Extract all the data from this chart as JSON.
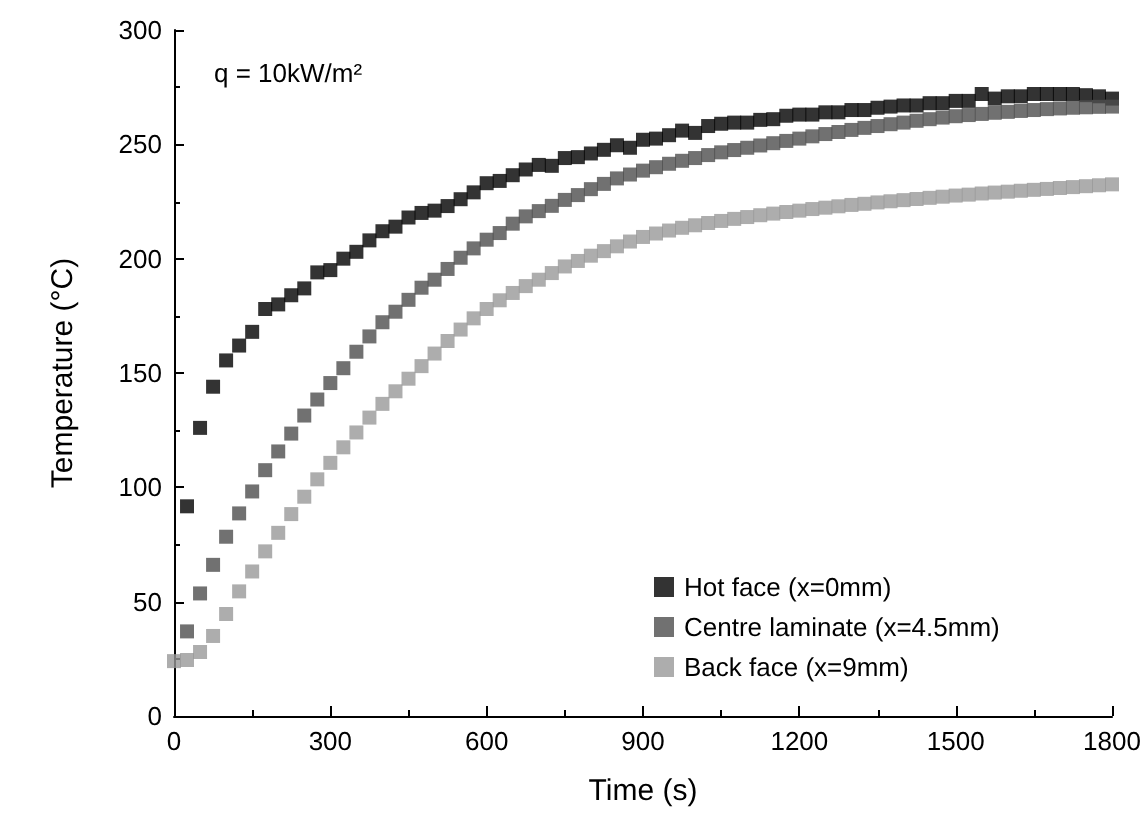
{
  "chart_data": {
    "type": "scatter",
    "xlabel": "Time (s)",
    "ylabel": "Temperature (°C)",
    "annotations": [
      "q = 10kW/m²"
    ],
    "xlim": [
      0,
      1800
    ],
    "xticks": [
      0,
      300,
      600,
      900,
      1200,
      1500,
      1800
    ],
    "ylim": [
      0,
      300
    ],
    "yticks": [
      0,
      50,
      100,
      150,
      200,
      250,
      300
    ],
    "grid": false,
    "legend": "bottom right",
    "marker": "square",
    "series": [
      {
        "name": "Hot face (x=0mm)",
        "color": "#000000",
        "x": [
          25,
          50,
          75,
          100,
          125,
          150,
          175,
          200,
          225,
          250,
          275,
          300,
          325,
          350,
          375,
          400,
          425,
          450,
          475,
          500,
          525,
          550,
          575,
          600,
          625,
          650,
          675,
          700,
          725,
          750,
          775,
          800,
          825,
          850,
          875,
          900,
          925,
          950,
          975,
          1000,
          1025,
          1050,
          1075,
          1100,
          1125,
          1150,
          1175,
          1200,
          1225,
          1250,
          1275,
          1300,
          1325,
          1350,
          1375,
          1400,
          1425,
          1450,
          1475,
          1500,
          1525,
          1550,
          1575,
          1600,
          1625,
          1650,
          1675,
          1700,
          1725,
          1750,
          1775,
          1800
        ],
        "values": [
          91.7,
          126,
          144,
          155.5,
          162,
          168,
          178,
          180,
          184,
          187,
          194,
          195,
          200,
          203,
          208,
          212,
          214,
          218,
          220,
          221,
          223,
          226,
          229,
          233,
          234,
          236.5,
          239,
          241,
          240.6,
          244,
          244.4,
          246,
          247.6,
          249.6,
          248.5,
          252,
          252.5,
          254,
          256,
          255,
          258,
          259,
          259.5,
          259.5,
          260.7,
          261,
          262.5,
          263,
          263,
          264,
          264,
          265,
          265,
          266,
          266.5,
          267,
          267,
          268,
          268,
          269,
          269,
          272,
          270,
          271,
          271,
          272,
          272,
          272,
          272,
          271.5,
          271,
          270
        ]
      },
      {
        "name": "Centre laminate (x=4.5mm)",
        "color": "#4d4d4d",
        "x": [
          25,
          50,
          75,
          100,
          125,
          150,
          175,
          200,
          225,
          250,
          275,
          300,
          325,
          350,
          375,
          400,
          425,
          450,
          475,
          500,
          525,
          550,
          575,
          600,
          625,
          650,
          675,
          700,
          725,
          750,
          775,
          800,
          825,
          850,
          875,
          900,
          925,
          950,
          975,
          1000,
          1025,
          1050,
          1075,
          1100,
          1125,
          1150,
          1175,
          1200,
          1225,
          1250,
          1275,
          1300,
          1325,
          1350,
          1375,
          1400,
          1425,
          1450,
          1475,
          1500,
          1525,
          1550,
          1575,
          1600,
          1625,
          1650,
          1675,
          1700,
          1725,
          1750,
          1775,
          1800
        ],
        "values": [
          37,
          53.6,
          66.1,
          78.4,
          88.6,
          98.2,
          107.5,
          115.7,
          123.5,
          131.4,
          138.4,
          145.6,
          152.1,
          159.3,
          166,
          172.2,
          176.8,
          182,
          187.3,
          190.8,
          195.5,
          200.4,
          204.5,
          208.3,
          211.2,
          215.3,
          218.5,
          220.8,
          223.1,
          225.7,
          227.8,
          230.4,
          232.7,
          235.1,
          236.8,
          238.5,
          240,
          241.5,
          242.8,
          244,
          245.3,
          246.5,
          247.5,
          248.5,
          249.5,
          250.5,
          251.5,
          252.5,
          253.5,
          254.5,
          255.4,
          256.3,
          257.2,
          258,
          258.8,
          259.5,
          260.3,
          261,
          261.7,
          262.3,
          262.8,
          263.3,
          263.8,
          264.2,
          264.6,
          265,
          265.4,
          265.7,
          266,
          266.2,
          266.4,
          266.5
        ]
      },
      {
        "name": "Back face (x=9mm)",
        "color": "#999999",
        "x": [
          0,
          25,
          50,
          75,
          100,
          125,
          150,
          175,
          200,
          225,
          250,
          275,
          300,
          325,
          350,
          375,
          400,
          425,
          450,
          475,
          500,
          525,
          550,
          575,
          600,
          625,
          650,
          675,
          700,
          725,
          750,
          775,
          800,
          825,
          850,
          875,
          900,
          925,
          950,
          975,
          1000,
          1025,
          1050,
          1075,
          1100,
          1125,
          1150,
          1175,
          1200,
          1225,
          1250,
          1275,
          1300,
          1325,
          1350,
          1375,
          1400,
          1425,
          1450,
          1475,
          1500,
          1525,
          1550,
          1575,
          1600,
          1625,
          1650,
          1675,
          1700,
          1725,
          1750,
          1775,
          1800
        ],
        "values": [
          24,
          24.5,
          28,
          35,
          44.6,
          54.5,
          63.2,
          72,
          80.1,
          88.3,
          95.9,
          103.5,
          110.7,
          117.5,
          124,
          130.5,
          136.5,
          142,
          147.5,
          153,
          158.5,
          164,
          169,
          173.9,
          178,
          181.8,
          185,
          188,
          190.8,
          193.7,
          196.6,
          199,
          201.3,
          203.3,
          205.4,
          207.5,
          209.5,
          211,
          212.3,
          213.5,
          214.6,
          215.6,
          216.5,
          217.4,
          218.2,
          219,
          219.7,
          220.4,
          221,
          221.7,
          222.3,
          222.9,
          223.5,
          224,
          224.6,
          225.1,
          225.6,
          226.1,
          226.6,
          227.1,
          227.6,
          228,
          228.5,
          228.9,
          229.3,
          229.7,
          230.1,
          230.5,
          230.9,
          231.3,
          231.7,
          232.1,
          232.5
        ]
      }
    ]
  }
}
